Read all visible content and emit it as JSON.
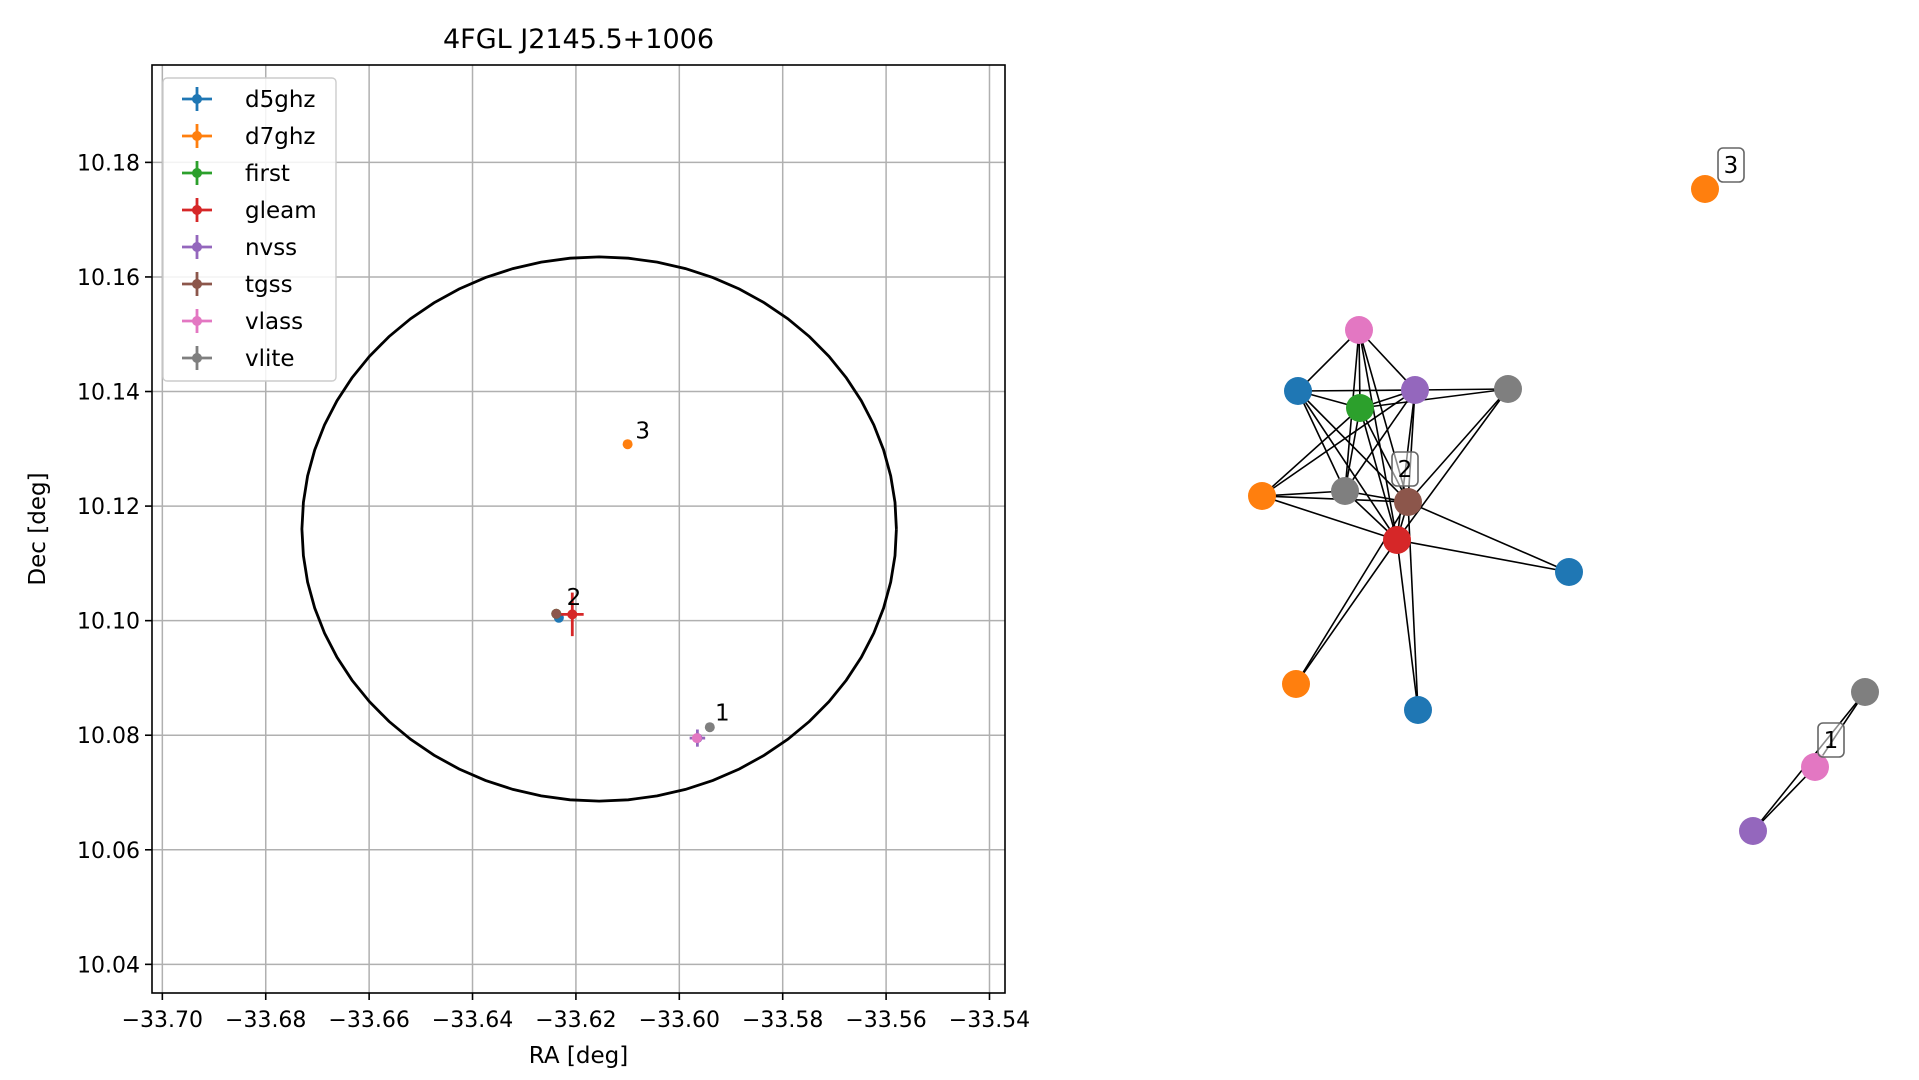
{
  "chart_data": [
    {
      "type": "scatter",
      "title": "4FGL J2145.5+1006",
      "xlabel": "RA [deg]",
      "ylabel": "Dec [deg]",
      "xlim": [
        -33.702,
        -33.537
      ],
      "ylim": [
        10.035,
        10.197
      ],
      "xticks": [
        -33.7,
        -33.68,
        -33.66,
        -33.64,
        -33.62,
        -33.6,
        -33.58,
        -33.56,
        -33.54
      ],
      "xtick_labels": [
        "−33.70",
        "−33.68",
        "−33.66",
        "−33.64",
        "−33.62",
        "−33.60",
        "−33.58",
        "−33.56",
        "−33.54"
      ],
      "yticks": [
        10.04,
        10.06,
        10.08,
        10.1,
        10.12,
        10.14,
        10.16,
        10.18
      ],
      "ytick_labels": [
        "10.04",
        "10.06",
        "10.08",
        "10.10",
        "10.12",
        "10.14",
        "10.16",
        "10.18"
      ],
      "grid": true,
      "legend_position": "upper-left",
      "ellipse": {
        "center": [
          -33.6155,
          10.116
        ],
        "ra_semi_axis": 0.0575,
        "dec_semi_axis": 0.0475
      },
      "series": [
        {
          "name": "d5ghz",
          "color": "#1f77b4",
          "points": [
            {
              "x": -33.6233,
              "y": 10.1005,
              "xerr": 0,
              "yerr": 0
            }
          ]
        },
        {
          "name": "d7ghz",
          "color": "#ff7f0e",
          "points": [
            {
              "x": -33.61,
              "y": 10.1308,
              "xerr": 0,
              "yerr": 0
            }
          ]
        },
        {
          "name": "first",
          "color": "#2ca02c",
          "points": [
            {
              "x": -33.6238,
              "y": 10.1012,
              "xerr": 0,
              "yerr": 0
            }
          ]
        },
        {
          "name": "gleam",
          "color": "#d62728",
          "points": [
            {
              "x": -33.6207,
              "y": 10.1011,
              "xerr": 0.0022,
              "yerr": 0.0038
            }
          ]
        },
        {
          "name": "nvss",
          "color": "#9467bd",
          "points": [
            {
              "x": -33.5965,
              "y": 10.0795,
              "xerr": 0.0015,
              "yerr": 0.0015
            }
          ]
        },
        {
          "name": "tgss",
          "color": "#8c564b",
          "points": [
            {
              "x": -33.6238,
              "y": 10.1012,
              "xerr": 0,
              "yerr": 0
            }
          ]
        },
        {
          "name": "vlass",
          "color": "#e377c2",
          "points": [
            {
              "x": -33.5966,
              "y": 10.0795,
              "xerr": 0,
              "yerr": 0
            }
          ]
        },
        {
          "name": "vlite",
          "color": "#7f7f7f",
          "points": [
            {
              "x": -33.5941,
              "y": 10.0814,
              "xerr": 0,
              "yerr": 0
            }
          ]
        }
      ],
      "annotations": [
        {
          "text": "1",
          "x": -33.5931,
          "y": 10.0826
        },
        {
          "text": "2",
          "x": -33.6218,
          "y": 10.1027
        },
        {
          "text": "3",
          "x": -33.6085,
          "y": 10.1318
        }
      ]
    },
    {
      "type": "network",
      "nodes": [
        {
          "id": 0,
          "color": "#e377c2"
        },
        {
          "id": 1,
          "color": "#1f77b4"
        },
        {
          "id": 2,
          "color": "#2ca02c"
        },
        {
          "id": 3,
          "color": "#9467bd"
        },
        {
          "id": 4,
          "color": "#7f7f7f"
        },
        {
          "id": 5,
          "color": "#ff7f0e"
        },
        {
          "id": 6,
          "color": "#7f7f7f"
        },
        {
          "id": 7,
          "color": "#8c564b"
        },
        {
          "id": 8,
          "color": "#d62728"
        },
        {
          "id": 9,
          "color": "#1f77b4"
        },
        {
          "id": 10,
          "color": "#ff7f0e"
        },
        {
          "id": 11,
          "color": "#1f77b4"
        },
        {
          "id": 12,
          "color": "#ff7f0e"
        },
        {
          "id": 13,
          "color": "#7f7f7f"
        },
        {
          "id": 14,
          "color": "#e377c2"
        },
        {
          "id": 15,
          "color": "#9467bd"
        }
      ],
      "edges": [
        [
          0,
          1
        ],
        [
          0,
          2
        ],
        [
          0,
          3
        ],
        [
          0,
          6
        ],
        [
          0,
          7
        ],
        [
          0,
          8
        ],
        [
          1,
          2
        ],
        [
          1,
          3
        ],
        [
          1,
          6
        ],
        [
          1,
          7
        ],
        [
          1,
          8
        ],
        [
          2,
          3
        ],
        [
          2,
          4
        ],
        [
          2,
          5
        ],
        [
          2,
          6
        ],
        [
          2,
          7
        ],
        [
          2,
          8
        ],
        [
          3,
          4
        ],
        [
          3,
          5
        ],
        [
          3,
          6
        ],
        [
          3,
          7
        ],
        [
          3,
          8
        ],
        [
          4,
          7
        ],
        [
          4,
          8
        ],
        [
          5,
          6
        ],
        [
          5,
          7
        ],
        [
          5,
          8
        ],
        [
          6,
          7
        ],
        [
          6,
          8
        ],
        [
          7,
          8
        ],
        [
          7,
          9
        ],
        [
          7,
          10
        ],
        [
          7,
          11
        ],
        [
          8,
          9
        ],
        [
          8,
          10
        ],
        [
          8,
          11
        ],
        [
          13,
          14
        ],
        [
          13,
          15
        ],
        [
          14,
          15
        ]
      ],
      "labels": [
        {
          "text": "1",
          "node": 14
        },
        {
          "text": "2",
          "node": 7
        },
        {
          "text": "3",
          "node": 12
        }
      ]
    }
  ]
}
